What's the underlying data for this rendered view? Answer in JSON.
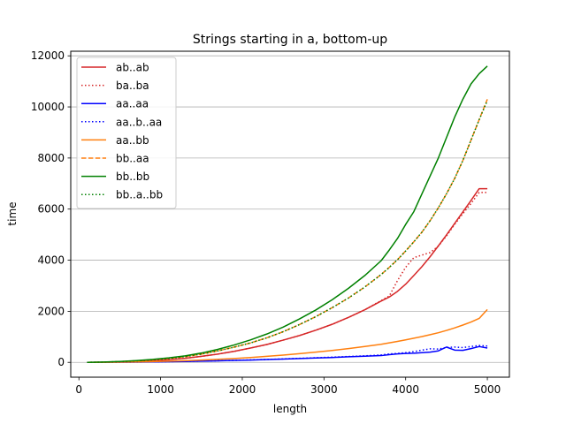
{
  "chart_data": {
    "type": "line",
    "title": "Strings starting in a, bottom-up",
    "xlabel": "length",
    "ylabel": "time",
    "xlim": [
      -100,
      5270
    ],
    "ylim": [
      -580,
      12180
    ],
    "xticks": [
      0,
      1000,
      2000,
      3000,
      4000,
      5000
    ],
    "yticks": [
      0,
      2000,
      4000,
      6000,
      8000,
      10000,
      12000
    ],
    "grid": "y-major",
    "legend_position": "upper-left",
    "x": [
      100,
      300,
      500,
      700,
      900,
      1100,
      1300,
      1500,
      1700,
      1900,
      2100,
      2300,
      2500,
      2700,
      2900,
      3100,
      3300,
      3500,
      3700,
      3800,
      3900,
      4000,
      4100,
      4200,
      4300,
      4400,
      4500,
      4600,
      4700,
      4800,
      4900,
      5000
    ],
    "series": [
      {
        "name": "ab..ab",
        "color": "#d62728",
        "dash": "solid",
        "values": [
          0,
          5,
          18,
          38,
          65,
          105,
          160,
          235,
          325,
          430,
          560,
          700,
          870,
          1050,
          1260,
          1490,
          1760,
          2060,
          2400,
          2560,
          2780,
          3060,
          3400,
          3750,
          4140,
          4560,
          4990,
          5440,
          5890,
          6340,
          6800,
          6800
        ]
      },
      {
        "name": "ba..ba",
        "color": "#d62728",
        "dash": "dotted",
        "values": [
          0,
          5,
          18,
          38,
          65,
          105,
          160,
          235,
          325,
          430,
          560,
          700,
          870,
          1050,
          1260,
          1490,
          1760,
          2060,
          2420,
          2600,
          3200,
          3720,
          4100,
          4200,
          4300,
          4550,
          4950,
          5400,
          5820,
          6220,
          6650,
          6650
        ]
      },
      {
        "name": "aa..aa",
        "color": "#0000ff",
        "dash": "solid",
        "values": [
          0,
          2,
          5,
          10,
          18,
          26,
          36,
          48,
          60,
          75,
          92,
          110,
          130,
          150,
          170,
          190,
          220,
          240,
          265,
          300,
          330,
          350,
          360,
          380,
          400,
          450,
          600,
          480,
          470,
          540,
          620,
          560
        ]
      },
      {
        "name": "aa..b..aa",
        "color": "#0000ff",
        "dash": "dotted",
        "values": [
          0,
          2,
          6,
          11,
          19,
          28,
          38,
          50,
          63,
          78,
          96,
          115,
          135,
          158,
          180,
          205,
          230,
          255,
          290,
          330,
          350,
          380,
          420,
          480,
          530,
          520,
          580,
          600,
          580,
          620,
          660,
          640
        ]
      },
      {
        "name": "aa..bb",
        "color": "#ff7f0e",
        "dash": "solid",
        "values": [
          0,
          2,
          8,
          16,
          28,
          45,
          65,
          90,
          118,
          150,
          190,
          235,
          285,
          340,
          400,
          465,
          540,
          620,
          710,
          765,
          820,
          880,
          945,
          1010,
          1085,
          1160,
          1250,
          1350,
          1460,
          1580,
          1720,
          2070
        ]
      },
      {
        "name": "bb..aa",
        "color": "#ff7f0e",
        "dash": "dashed",
        "values": [
          0,
          10,
          30,
          60,
          100,
          155,
          225,
          325,
          450,
          595,
          760,
          960,
          1200,
          1480,
          1790,
          2140,
          2520,
          2950,
          3440,
          3720,
          4020,
          4360,
          4720,
          5100,
          5550,
          6050,
          6600,
          7200,
          7900,
          8700,
          9500,
          10300
        ]
      },
      {
        "name": "bb..bb",
        "color": "#008000",
        "dash": "solid",
        "values": [
          0,
          12,
          35,
          70,
          115,
          175,
          255,
          365,
          510,
          680,
          880,
          1110,
          1380,
          1700,
          2050,
          2450,
          2900,
          3400,
          3980,
          4400,
          4850,
          5400,
          5900,
          6600,
          7300,
          8000,
          8800,
          9600,
          10300,
          10900,
          11300,
          11600
        ]
      },
      {
        "name": "bb..a..bb",
        "color": "#008000",
        "dash": "dotted",
        "values": [
          0,
          10,
          30,
          60,
          100,
          155,
          225,
          325,
          450,
          595,
          760,
          960,
          1200,
          1480,
          1790,
          2140,
          2520,
          2950,
          3440,
          3720,
          4020,
          4360,
          4720,
          5100,
          5550,
          6050,
          6600,
          7200,
          7900,
          8700,
          9500,
          10250
        ]
      }
    ]
  }
}
